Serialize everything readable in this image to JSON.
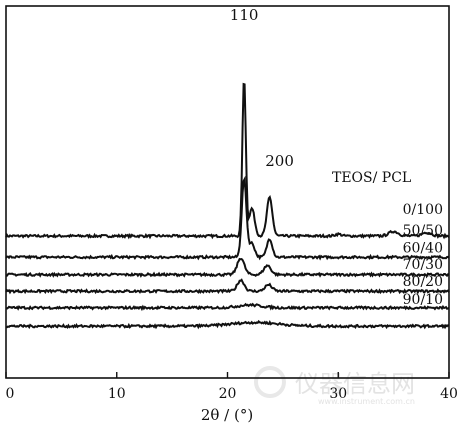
{
  "chart_data": {
    "type": "line",
    "title": "",
    "xlabel": "2θ / (°)",
    "ylabel": "",
    "xlim": [
      0,
      40
    ],
    "xticks": [
      0,
      10,
      20,
      30,
      40
    ],
    "legend_title": "TEOS/ PCL",
    "grid": false,
    "peak_labels": [
      {
        "text": "110",
        "x": 21.5
      },
      {
        "text": "200",
        "x": 23.8
      }
    ],
    "series": [
      {
        "name": "0/100",
        "baseline": 0.0,
        "peaks": [
          [
            21.5,
            1.72,
            0.22
          ],
          [
            22.2,
            0.3,
            0.35
          ],
          [
            23.8,
            0.42,
            0.35
          ],
          [
            30.0,
            0.02,
            0.4
          ],
          [
            35.0,
            0.05,
            0.6
          ],
          [
            38.0,
            0.04,
            0.6
          ]
        ]
      },
      {
        "name": "50/50",
        "baseline": -0.23,
        "peaks": [
          [
            21.5,
            0.85,
            0.3
          ],
          [
            22.2,
            0.15,
            0.35
          ],
          [
            23.8,
            0.2,
            0.35
          ]
        ]
      },
      {
        "name": "60/40",
        "baseline": -0.42,
        "peaks": [
          [
            21.2,
            0.18,
            0.45
          ],
          [
            23.6,
            0.1,
            0.45
          ]
        ]
      },
      {
        "name": "70/30",
        "baseline": -0.6,
        "peaks": [
          [
            21.2,
            0.12,
            0.45
          ],
          [
            23.7,
            0.07,
            0.45
          ]
        ]
      },
      {
        "name": "80/20",
        "baseline": -0.78,
        "peaks": [
          [
            22.0,
            0.03,
            1.5
          ]
        ]
      },
      {
        "name": "90/10",
        "baseline": -0.98,
        "peaks": [
          [
            22.5,
            0.04,
            3.0
          ]
        ]
      }
    ]
  },
  "watermark": "仪器信息网",
  "watermark_url": "www.instrument.com.cn"
}
